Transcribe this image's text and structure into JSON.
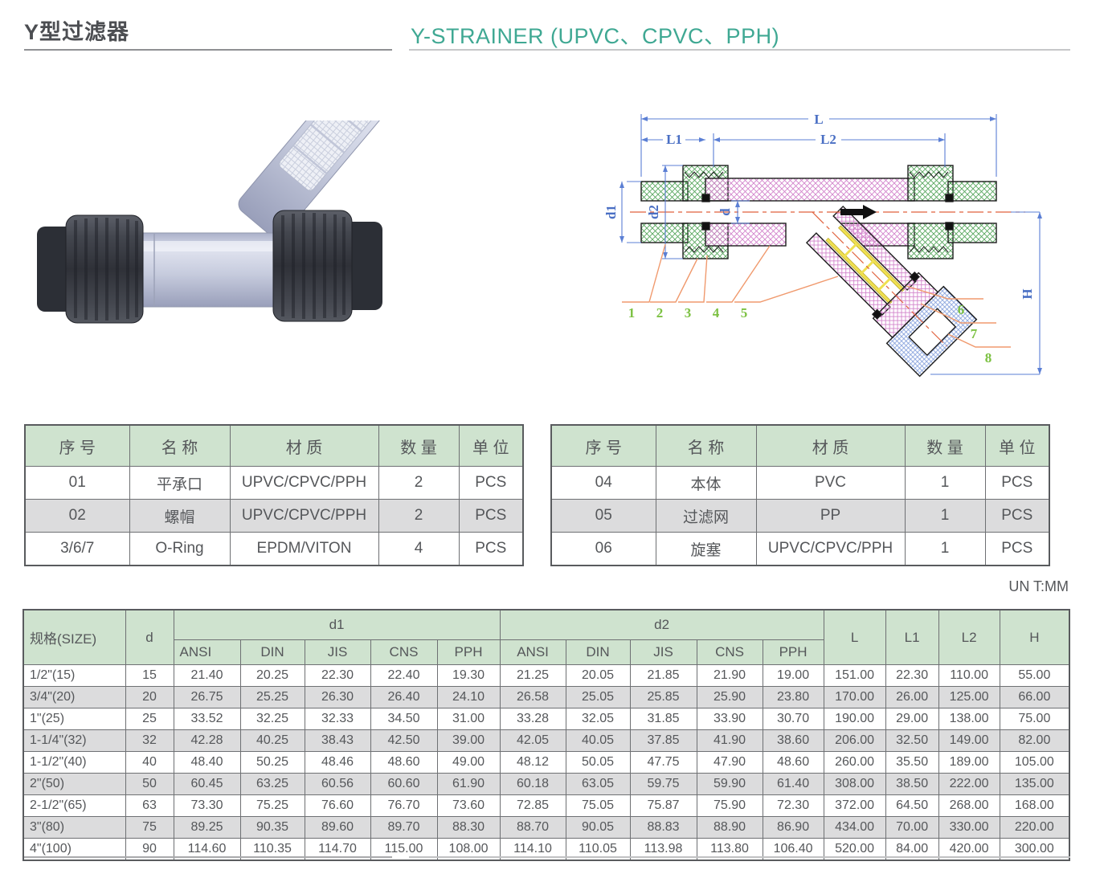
{
  "header": {
    "title_cn": "Y型过滤器",
    "title_en": "Y-STRAINER (UPVC、CPVC、PPH)"
  },
  "unit_note": "UN T:MM",
  "colors": {
    "accent_teal": "#3fa893",
    "table_header_green": "#cfe3cf",
    "row_alt_gray": "#dcdcdd",
    "dimension_line_blue": "#4a6fc4",
    "leader_orange": "#f09a6e",
    "part_number_green": "#7cc142",
    "centerline_red": "#e0603c"
  },
  "parts_tables": [
    {
      "headers": [
        "序 号",
        "名 称",
        "材 质",
        "数 量",
        "单 位"
      ],
      "rows": [
        [
          "01",
          "平承口",
          "UPVC/CPVC/PPH",
          "2",
          "PCS"
        ],
        [
          "02",
          "螺帽",
          "UPVC/CPVC/PPH",
          "2",
          "PCS"
        ],
        [
          "3/6/7",
          "O-Ring",
          "EPDM/VITON",
          "4",
          "PCS"
        ]
      ]
    },
    {
      "headers": [
        "序 号",
        "名 称",
        "材 质",
        "数 量",
        "单 位"
      ],
      "rows": [
        [
          "04",
          "本体",
          "PVC",
          "1",
          "PCS"
        ],
        [
          "05",
          "过滤网",
          "PP",
          "1",
          "PCS"
        ],
        [
          "06",
          "旋塞",
          "UPVC/CPVC/PPH",
          "1",
          "PCS"
        ]
      ]
    }
  ],
  "dim_table": {
    "size_label": "规格(SIZE)",
    "d_label": "d",
    "d1_label": "d1",
    "d2_label": "d2",
    "L_label": "L",
    "L1_label": "L1",
    "L2_label": "L2",
    "H_label": "H",
    "standards": [
      "ANSI",
      "DIN",
      "JIS",
      "CNS",
      "PPH"
    ],
    "rows": [
      [
        "1/2\"(15)",
        "15",
        "21.40",
        "20.25",
        "22.30",
        "22.40",
        "19.30",
        "21.25",
        "20.05",
        "21.85",
        "21.90",
        "19.00",
        "151.00",
        "22.30",
        "110.00",
        "55.00"
      ],
      [
        "3/4\"(20)",
        "20",
        "26.75",
        "25.25",
        "26.30",
        "26.40",
        "24.10",
        "26.58",
        "25.05",
        "25.85",
        "25.90",
        "23.80",
        "170.00",
        "26.00",
        "125.00",
        "66.00"
      ],
      [
        "1\"(25)",
        "25",
        "33.52",
        "32.25",
        "32.33",
        "34.50",
        "31.00",
        "33.28",
        "32.05",
        "31.85",
        "33.90",
        "30.70",
        "190.00",
        "29.00",
        "138.00",
        "75.00"
      ],
      [
        "1-1/4\"(32)",
        "32",
        "42.28",
        "40.25",
        "38.43",
        "42.50",
        "39.00",
        "42.05",
        "40.05",
        "37.85",
        "41.90",
        "38.60",
        "206.00",
        "32.50",
        "149.00",
        "82.00"
      ],
      [
        "1-1/2\"(40)",
        "40",
        "48.40",
        "50.25",
        "48.46",
        "48.60",
        "49.00",
        "48.12",
        "50.05",
        "47.75",
        "47.90",
        "48.60",
        "260.00",
        "35.50",
        "189.00",
        "105.00"
      ],
      [
        "2\"(50)",
        "50",
        "60.45",
        "63.25",
        "60.56",
        "60.60",
        "61.90",
        "60.18",
        "63.05",
        "59.75",
        "59.90",
        "61.40",
        "308.00",
        "38.50",
        "222.00",
        "135.00"
      ],
      [
        "2-1/2\"(65)",
        "63",
        "73.30",
        "75.25",
        "76.60",
        "76.70",
        "73.60",
        "72.85",
        "75.05",
        "75.87",
        "75.90",
        "72.30",
        "372.00",
        "64.50",
        "268.00",
        "168.00"
      ],
      [
        "3\"(80)",
        "75",
        "89.25",
        "90.35",
        "89.60",
        "89.70",
        "88.30",
        "88.70",
        "90.05",
        "88.83",
        "88.90",
        "86.90",
        "434.00",
        "70.00",
        "330.00",
        "220.00"
      ],
      [
        "4\"(100)",
        "90",
        "114.60",
        "110.35",
        "114.70",
        "115.00",
        "108.00",
        "114.10",
        "110.05",
        "113.98",
        "113.80",
        "106.40",
        "520.00",
        "84.00",
        "420.00",
        "300.00"
      ]
    ]
  },
  "diagram": {
    "dims": {
      "L": "L",
      "L1": "L1",
      "L2": "L2",
      "d1": "d1",
      "d2": "d2",
      "d": "d",
      "H": "H"
    },
    "part_numbers": [
      "1",
      "2",
      "3",
      "4",
      "5",
      "6",
      "7",
      "8"
    ]
  }
}
